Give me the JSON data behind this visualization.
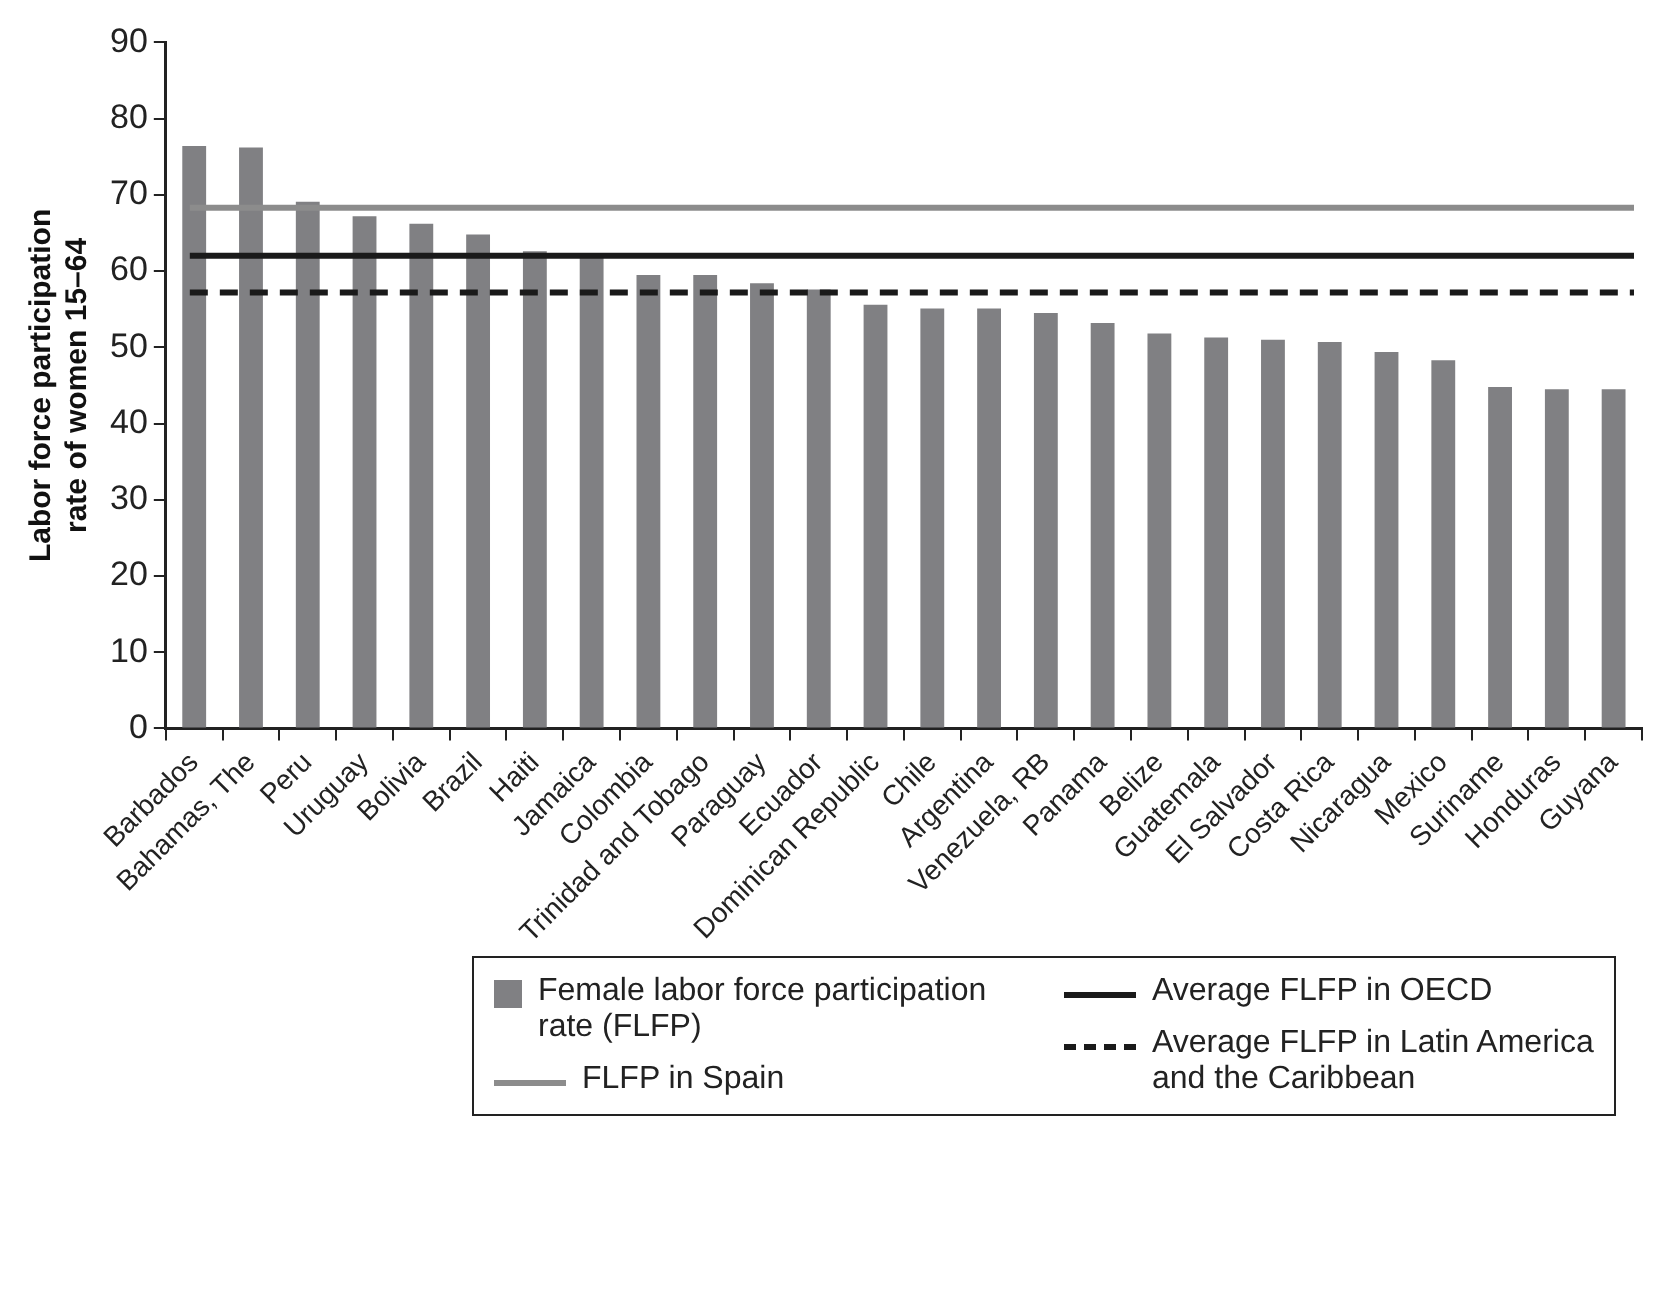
{
  "chart_data": {
    "type": "bar",
    "ylabel": "Labor force participation rate of women 15–64",
    "categories": [
      "Barbados",
      "Bahamas, The",
      "Peru",
      "Uruguay",
      "Bolivia",
      "Brazil",
      "Haiti",
      "Jamaica",
      "Colombia",
      "Trinidad and Tobago",
      "Paraguay",
      "Ecuador",
      "Dominican Republic",
      "Chile",
      "Argentina",
      "Venezuela, RB",
      "Panama",
      "Belize",
      "Guatemala",
      "El Salvador",
      "Costa Rica",
      "Nicaragua",
      "Mexico",
      "Suriname",
      "Honduras",
      "Guyana"
    ],
    "series": [
      {
        "name": "Female labor force participation rate (FLFP)",
        "color": "#808083",
        "values": [
          76.4,
          76.2,
          69.1,
          67.2,
          66.2,
          64.8,
          62.6,
          62.0,
          59.5,
          59.5,
          58.4,
          57.6,
          55.6,
          55.1,
          55.1,
          54.5,
          53.2,
          51.8,
          51.3,
          51.0,
          50.7,
          49.4,
          48.3,
          44.8,
          44.5,
          44.5
        ]
      }
    ],
    "ylim": [
      0,
      90
    ],
    "yticks": [
      0,
      10,
      20,
      30,
      40,
      50,
      60,
      70,
      80,
      90
    ],
    "ref_lines": [
      {
        "axis": "y",
        "value": 68.3,
        "label": "FLFP in Spain",
        "color": "#8c8c8c",
        "line_style": "solid"
      },
      {
        "axis": "y",
        "value": 62.0,
        "label": "Average FLFP in OECD",
        "color": "#1a1a1a",
        "line_style": "solid"
      },
      {
        "axis": "y",
        "value": 57.2,
        "label": "Average FLFP in Latin America and the Caribbean",
        "color": "#1a1a1a",
        "line_style": "dashed"
      }
    ],
    "legend": "bottom"
  }
}
